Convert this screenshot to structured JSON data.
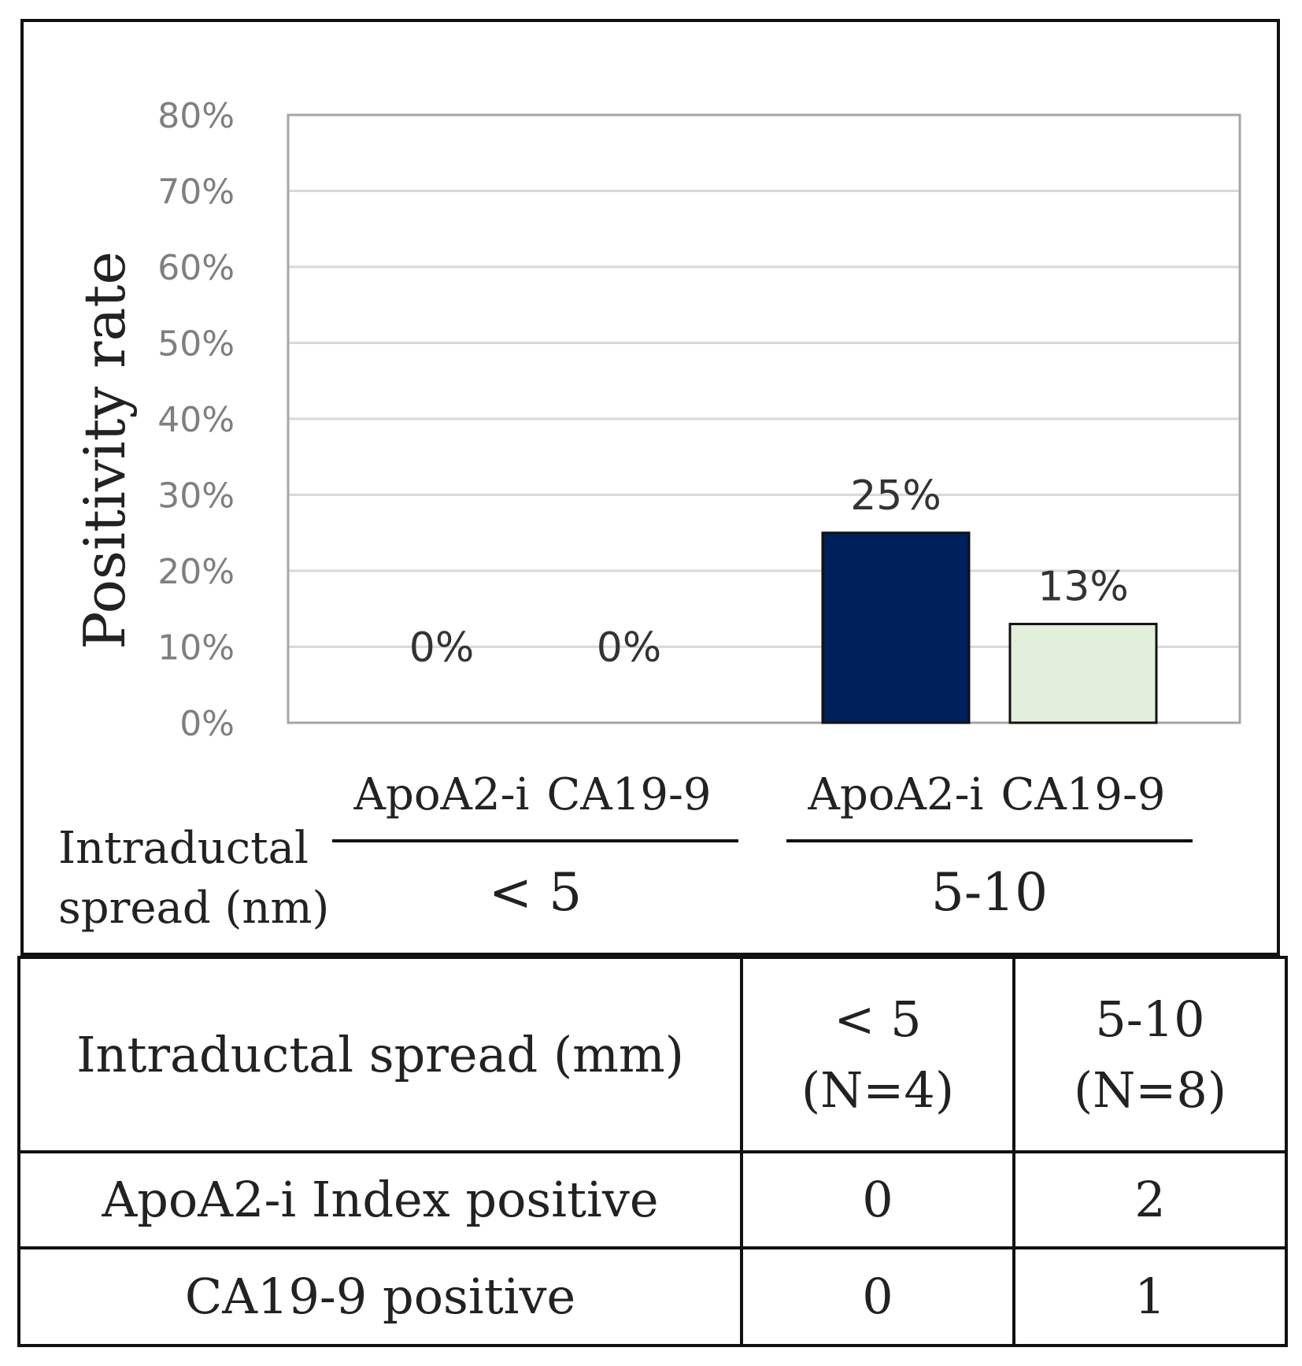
{
  "chart_data": {
    "type": "bar",
    "ylabel": "Positivity rate",
    "ylim": [
      0,
      80
    ],
    "yticks": [
      "0%",
      "10%",
      "20%",
      "30%",
      "40%",
      "50%",
      "60%",
      "70%",
      "80%"
    ],
    "grid": true,
    "groups": [
      {
        "name": "< 5",
        "bars": [
          {
            "label": "ApoA2-i",
            "value": 0,
            "data_label": "0%",
            "color": "#00205b"
          },
          {
            "label": "CA19-9",
            "value": 0,
            "data_label": "0%",
            "color": "#e2efda"
          }
        ]
      },
      {
        "name": "5-10",
        "bars": [
          {
            "label": "ApoA2-i",
            "value": 25,
            "data_label": "25%",
            "color": "#00205b"
          },
          {
            "label": "CA19-9",
            "value": 13,
            "data_label": "13%",
            "color": "#e2efda"
          }
        ]
      }
    ],
    "group_axis_title_lines": [
      "Intraductal",
      "spread (nm)"
    ]
  },
  "table": {
    "header": {
      "label": "Intraductal spread (mm)",
      "col1": [
        "< 5",
        "(N=4)"
      ],
      "col2": [
        "5-10",
        "(N=8)"
      ]
    },
    "rows": [
      {
        "label": "ApoA2-i Index positive",
        "v1": "0",
        "v2": "2"
      },
      {
        "label": "CA19-9 positive",
        "v1": "0",
        "v2": "1"
      }
    ]
  }
}
